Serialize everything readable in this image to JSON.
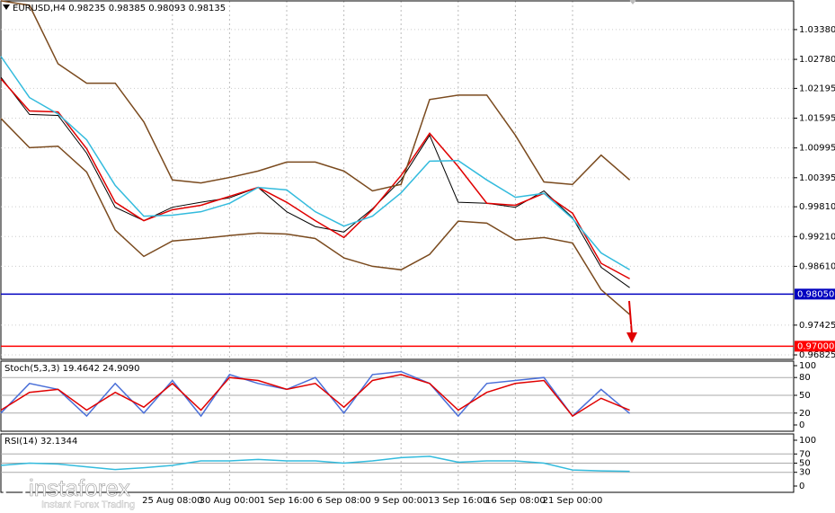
{
  "chart_data": [
    {
      "type": "line",
      "title": "EURUSD,H4 0.98235 0.98385 0.98093 0.98135",
      "categories": [
        null,
        null,
        null,
        null,
        null,
        null,
        "25 Aug 08:00",
        null,
        "30 Aug 00:00",
        null,
        "1 Sep 16:00",
        null,
        "6 Sep 08:00",
        null,
        "9 Sep 00:00",
        null,
        "13 Sep 16:00",
        null,
        "16 Sep 08:00",
        null,
        "21 Sep 00:00",
        null,
        null
      ],
      "series": [
        {
          "color": "#000000",
          "values": [
            1.0242,
            1.0167,
            1.0165,
            1.0089,
            0.998,
            0.9953,
            0.998,
            0.999,
            0.9999,
            1.002,
            0.9971,
            0.9941,
            0.993,
            0.9977,
            1.0035,
            1.0125,
            0.999,
            0.9988,
            0.998,
            1.0013,
            0.9959,
            0.9859,
            0.9818
          ]
        },
        {
          "color": "#e00000",
          "values": [
            1.0239,
            1.0174,
            1.0172,
            1.0098,
            0.999,
            0.9953,
            0.9975,
            0.9984,
            1.0002,
            1.002,
            0.999,
            0.9953,
            0.9919,
            0.9975,
            1.0044,
            1.0129,
            1.0062,
            0.9988,
            0.9984,
            1.0008,
            0.9968,
            0.9867,
            0.9836
          ]
        },
        {
          "color": "#33bbdd",
          "values": [
            1.0284,
            1.0201,
            1.0168,
            1.0116,
            1.0024,
            0.9962,
            0.9964,
            0.9971,
            0.9988,
            1.002,
            1.0015,
            0.9971,
            0.9942,
            0.9962,
            1.0009,
            1.0073,
            1.0074,
            1.0035,
            1.0,
            1.0008,
            0.9957,
            0.9888,
            0.9854
          ]
        },
        {
          "color": "#7a4a1e",
          "values": [
            1.0396,
            1.0387,
            1.0269,
            1.023,
            1.023,
            1.0152,
            1.0035,
            1.0029,
            1.004,
            1.0053,
            1.0071,
            1.0071,
            1.0053,
            1.0013,
            1.0026,
            1.0197,
            1.0206,
            1.0206,
            1.0125,
            1.0031,
            1.0026,
            1.0085,
            1.0035
          ]
        },
        {
          "color": "#7a4a1e",
          "values": [
            1.0159,
            1.01,
            1.0103,
            1.0051,
            0.9934,
            0.9881,
            0.9912,
            0.9917,
            0.9923,
            0.9928,
            0.9926,
            0.9917,
            0.9878,
            0.9861,
            0.9854,
            0.9885,
            0.9952,
            0.9948,
            0.9914,
            0.9919,
            0.9908,
            0.9814,
            0.9764
          ]
        }
      ],
      "ylim": [
        0.96735,
        1.03958
      ],
      "yticks": [
        {
          "value": 1.0338,
          "label": "1.03380"
        },
        {
          "value": 1.0278,
          "label": "1.02780"
        },
        {
          "value": 1.02195,
          "label": "1.02195"
        },
        {
          "value": 1.01595,
          "label": "1.01595"
        },
        {
          "value": 1.00995,
          "label": "1.00995"
        },
        {
          "value": 1.00395,
          "label": "1.00395"
        },
        {
          "value": 0.9981,
          "label": "0.99810"
        },
        {
          "value": 0.9921,
          "label": "0.99210"
        },
        {
          "value": 0.9861,
          "label": "0.98610"
        },
        {
          "value": 0.97425,
          "label": "0.97425"
        },
        {
          "value": 0.96825,
          "label": "0.96825"
        }
      ],
      "levels": [
        {
          "value": 0.9805,
          "label": "0.98050",
          "color": "#0000c0"
        },
        {
          "value": 0.97,
          "label": "0.97000",
          "color": "#ff0000"
        }
      ],
      "grid": true
    },
    {
      "type": "line",
      "title": "Stoch(5,3,3) 19.4642 24.9090",
      "series": [
        {
          "color": "#4a6fd8",
          "values": [
            20,
            70,
            60,
            15,
            70,
            20,
            75,
            15,
            85,
            70,
            60,
            80,
            20,
            85,
            90,
            70,
            15,
            70,
            75,
            80,
            15,
            60,
            19.4642
          ]
        },
        {
          "color": "#e00000",
          "values": [
            25,
            55,
            60,
            25,
            55,
            30,
            70,
            25,
            80,
            75,
            60,
            70,
            30,
            75,
            85,
            70,
            25,
            55,
            70,
            75,
            15,
            45,
            24.909
          ]
        }
      ],
      "ylim": [
        0,
        100
      ],
      "yticks": [
        0,
        20,
        50,
        80,
        100
      ],
      "levels": [
        20,
        50,
        80
      ]
    },
    {
      "type": "line",
      "title": "RSI(14) 32.1344",
      "series": [
        {
          "color": "#33bbdd",
          "values": [
            45,
            50,
            48,
            42,
            36,
            40,
            45,
            55,
            55,
            58,
            55,
            55,
            50,
            55,
            62,
            65,
            52,
            55,
            55,
            50,
            35,
            33,
            32.1344
          ]
        }
      ],
      "ylim": [
        0,
        100
      ],
      "yticks": [
        0,
        30,
        50,
        70,
        100
      ],
      "levels": [
        30,
        50,
        70
      ]
    }
  ],
  "logo": {
    "name": "instaforex",
    "tagline": "Instant Forex Trading"
  }
}
